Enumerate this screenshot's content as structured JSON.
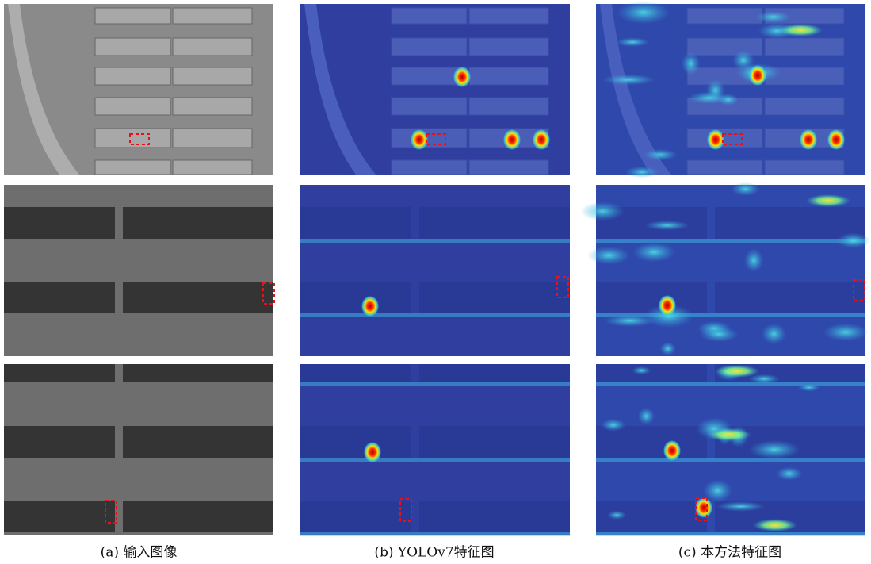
{
  "figure": {
    "captions": [
      "(a) 输入图像",
      "(b) YOLOv7特征图",
      "(c) 本方法特征图"
    ]
  }
}
